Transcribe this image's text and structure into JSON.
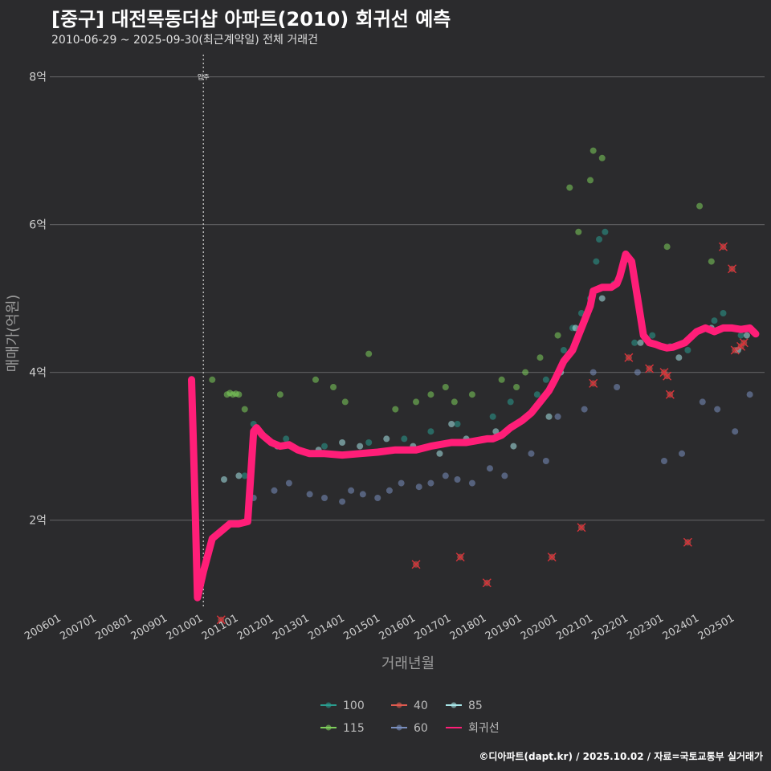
{
  "chart_data": {
    "type": "scatter",
    "title": "[중구] 대전목동더샵 아파트(2010) 회귀선 예측",
    "subtitle": "2010-06-29 ~ 2025-09-30(최근계약일) 전체 거래건",
    "xlabel": "거래년월",
    "ylabel": "매매가(억원)",
    "x_ticks": [
      "200601",
      "200701",
      "200801",
      "200901",
      "201001",
      "201101",
      "201201",
      "201301",
      "201401",
      "201501",
      "201601",
      "201701",
      "201801",
      "201901",
      "202001",
      "202101",
      "202201",
      "202301",
      "202401",
      "202501"
    ],
    "x_range": [
      "2005-09",
      "2025-11"
    ],
    "y_ticks": [
      {
        "value": 2,
        "label": "2억"
      },
      {
        "value": 4,
        "label": "4억"
      },
      {
        "value": 6,
        "label": "6억"
      },
      {
        "value": 8,
        "label": "8억"
      }
    ],
    "ylim": [
      0.8,
      8.3
    ],
    "grid": "horizontal",
    "legend_position": "bottom",
    "annotations": [
      {
        "x": "2010-01",
        "y": 8.0,
        "text": "입주",
        "style": "dotted vertical line"
      }
    ],
    "colors": {
      "100": "#2a9d8f",
      "40": "#e05a4f",
      "85": "#a8e6e8",
      "115": "#7ecf5b",
      "60": "#7a8fbf",
      "회귀선": "#ff1e78"
    },
    "series": [
      {
        "name": "100",
        "kind": "points",
        "x": [
          "2011-03",
          "2011-06",
          "2012-05",
          "2013-06",
          "2014-09",
          "2015-09",
          "2016-06",
          "2017-03",
          "2018-03",
          "2018-09",
          "2019-06",
          "2019-09",
          "2020-03",
          "2020-06",
          "2020-09",
          "2020-12",
          "2021-02",
          "2021-03",
          "2021-05",
          "2021-08",
          "2022-03",
          "2022-09",
          "2023-03",
          "2023-09",
          "2024-03",
          "2024-06",
          "2024-09",
          "2025-03",
          "2025-06"
        ],
        "y": [
          2.6,
          3.3,
          3.1,
          3.0,
          3.05,
          3.1,
          3.2,
          3.3,
          3.4,
          3.6,
          3.7,
          3.9,
          4.3,
          4.6,
          4.8,
          5.0,
          5.5,
          5.8,
          5.9,
          5.2,
          4.4,
          4.5,
          4.35,
          4.3,
          4.6,
          4.7,
          4.8,
          4.5,
          4.6
        ]
      },
      {
        "name": "40",
        "kind": "points",
        "x": [
          "2010-07",
          "2016-01",
          "2017-04",
          "2018-01",
          "2019-11",
          "2020-09",
          "2021-01",
          "2022-01",
          "2022-08",
          "2023-01",
          "2023-02",
          "2023-03",
          "2023-09",
          "2024-09",
          "2024-12",
          "2025-01",
          "2025-03",
          "2025-04"
        ],
        "y": [
          0.65,
          1.4,
          1.5,
          1.15,
          1.5,
          1.9,
          3.85,
          4.2,
          4.05,
          4.0,
          3.95,
          3.7,
          1.7,
          5.7,
          5.4,
          4.3,
          4.35,
          4.4
        ],
        "marked_x": true
      },
      {
        "name": "85",
        "kind": "points",
        "x": [
          "2010-08",
          "2011-01",
          "2012-02",
          "2013-04",
          "2013-12",
          "2014-06",
          "2015-03",
          "2015-12",
          "2016-09",
          "2017-01",
          "2017-06",
          "2018-04",
          "2018-10",
          "2019-05",
          "2019-10",
          "2020-02",
          "2020-07",
          "2021-04",
          "2022-05",
          "2023-06",
          "2024-05",
          "2025-02",
          "2025-05"
        ],
        "y": [
          2.55,
          2.6,
          3.0,
          2.95,
          3.05,
          3.0,
          3.1,
          3.0,
          2.9,
          3.3,
          3.1,
          3.2,
          3.0,
          3.5,
          3.4,
          4.0,
          4.6,
          5.0,
          4.4,
          4.2,
          4.6,
          4.3,
          4.5
        ]
      },
      {
        "name": "115",
        "kind": "points",
        "x": [
          "2010-04",
          "2010-09",
          "2010-10",
          "2010-11",
          "2010-12",
          "2011-01",
          "2011-03",
          "2012-03",
          "2013-03",
          "2013-09",
          "2014-01",
          "2014-09",
          "2015-06",
          "2016-01",
          "2016-06",
          "2016-11",
          "2017-02",
          "2017-08",
          "2018-06",
          "2018-11",
          "2019-02",
          "2019-07",
          "2020-01",
          "2020-05",
          "2020-08",
          "2020-12",
          "2021-01",
          "2021-04",
          "2023-02",
          "2024-01",
          "2024-05"
        ],
        "y": [
          3.9,
          3.7,
          3.72,
          3.7,
          3.71,
          3.7,
          3.5,
          3.7,
          3.9,
          3.8,
          3.6,
          4.25,
          3.5,
          3.6,
          3.7,
          3.8,
          3.6,
          3.7,
          3.9,
          3.8,
          4.0,
          4.2,
          4.5,
          6.5,
          5.9,
          6.6,
          7.0,
          6.9,
          5.7,
          6.25,
          5.5
        ]
      },
      {
        "name": "60",
        "kind": "points",
        "x": [
          "2011-06",
          "2012-01",
          "2012-06",
          "2013-01",
          "2013-06",
          "2013-12",
          "2014-03",
          "2014-07",
          "2014-12",
          "2015-04",
          "2015-08",
          "2016-02",
          "2016-06",
          "2016-11",
          "2017-03",
          "2017-08",
          "2018-02",
          "2018-07",
          "2019-04",
          "2019-09",
          "2020-01",
          "2020-10",
          "2021-01",
          "2021-09",
          "2022-04",
          "2023-01",
          "2023-07",
          "2024-02",
          "2024-07",
          "2025-01",
          "2025-06"
        ],
        "y": [
          2.3,
          2.4,
          2.5,
          2.35,
          2.3,
          2.25,
          2.4,
          2.35,
          2.3,
          2.4,
          2.5,
          2.45,
          2.5,
          2.6,
          2.55,
          2.5,
          2.7,
          2.6,
          2.9,
          2.8,
          3.4,
          3.5,
          4.0,
          3.8,
          4.0,
          2.8,
          2.9,
          3.6,
          3.5,
          3.2,
          3.7
        ]
      },
      {
        "name": "회귀선",
        "kind": "line",
        "x": [
          "2009-09",
          "2009-10",
          "2009-11",
          "2010-01",
          "2010-04",
          "2010-07",
          "2010-10",
          "2011-01",
          "2011-04",
          "2011-06",
          "2011-07",
          "2011-09",
          "2011-12",
          "2012-03",
          "2012-06",
          "2012-09",
          "2013-01",
          "2013-06",
          "2013-12",
          "2014-06",
          "2014-12",
          "2015-06",
          "2016-01",
          "2016-06",
          "2017-01",
          "2017-06",
          "2018-01",
          "2018-03",
          "2018-06",
          "2018-09",
          "2019-01",
          "2019-04",
          "2019-07",
          "2019-10",
          "2019-12",
          "2020-03",
          "2020-06",
          "2020-09",
          "2020-12",
          "2021-01",
          "2021-04",
          "2021-07",
          "2021-09",
          "2021-10",
          "2021-12",
          "2022-02",
          "2022-04",
          "2022-06",
          "2022-08",
          "2022-10",
          "2022-12",
          "2023-02",
          "2023-04",
          "2023-08",
          "2023-12",
          "2024-03",
          "2024-06",
          "2024-09",
          "2024-12",
          "2025-03",
          "2025-06",
          "2025-08"
        ],
        "y": [
          3.9,
          2.5,
          0.95,
          1.3,
          1.75,
          1.85,
          1.95,
          1.95,
          1.98,
          3.2,
          3.25,
          3.15,
          3.05,
          3.0,
          3.02,
          2.95,
          2.9,
          2.9,
          2.88,
          2.9,
          2.92,
          2.95,
          2.95,
          3.0,
          3.05,
          3.05,
          3.1,
          3.1,
          3.15,
          3.25,
          3.35,
          3.45,
          3.6,
          3.75,
          3.9,
          4.15,
          4.3,
          4.6,
          4.9,
          5.1,
          5.15,
          5.15,
          5.2,
          5.3,
          5.6,
          5.5,
          5.0,
          4.5,
          4.4,
          4.38,
          4.35,
          4.33,
          4.34,
          4.4,
          4.55,
          4.6,
          4.55,
          4.6,
          4.6,
          4.58,
          4.6,
          4.52
        ]
      }
    ]
  },
  "footer": "©디아파트(dapt.kr) / 2025.10.02 / 자료=국토교통부 실거래가"
}
